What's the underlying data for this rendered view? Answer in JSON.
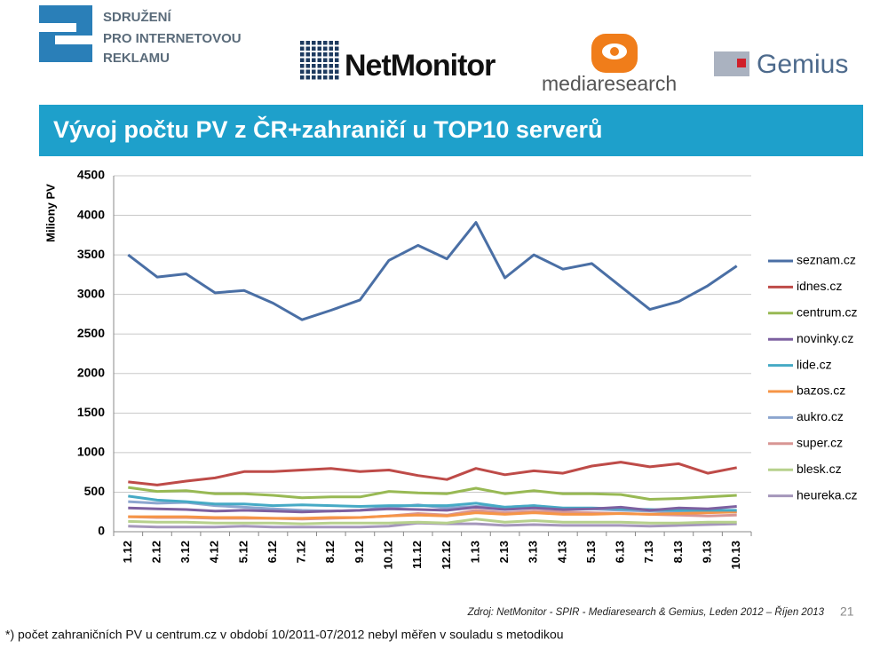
{
  "header": {
    "logo1": [
      "SDRUŽENÍ",
      "PRO INTERNETOVOU",
      "REKLAMU"
    ],
    "logo2": "NetMonitor",
    "logo3": "mediaresearch",
    "logo4": "Gemius",
    "title": "Vývoj počtu PV z ČR+zahraničí u TOP10 serverů"
  },
  "chart_data": {
    "type": "line",
    "y_label": "Miliony PV",
    "categories": [
      "1.12",
      "2.12",
      "3.12",
      "4.12",
      "5.12",
      "6.12",
      "7.12",
      "8.12",
      "9.12",
      "10.12",
      "11.12",
      "12.12",
      "1.13",
      "2.13",
      "3.13",
      "4.13",
      "5.13",
      "6.13",
      "7.13",
      "8.13",
      "9.13",
      "10.13"
    ],
    "ylim": [
      0,
      4500
    ],
    "yticks": [
      0,
      500,
      1000,
      1500,
      2000,
      2500,
      3000,
      3500,
      4000,
      4500
    ],
    "grid": true,
    "legend": "right",
    "series": [
      {
        "name": "seznam.cz",
        "color": "#4a6fa5",
        "values": [
          3500,
          3220,
          3260,
          3020,
          3050,
          2890,
          2680,
          2800,
          2930,
          3430,
          3620,
          3450,
          3910,
          3210,
          3500,
          3320,
          3390,
          3100,
          2810,
          2910,
          3110,
          3360
        ]
      },
      {
        "name": "idnes.cz",
        "color": "#be4b48",
        "values": [
          630,
          590,
          640,
          680,
          760,
          760,
          780,
          800,
          760,
          780,
          710,
          660,
          800,
          720,
          770,
          740,
          830,
          880,
          820,
          860,
          740,
          810
        ]
      },
      {
        "name": "centrum.cz",
        "color": "#98b954",
        "values": [
          560,
          510,
          520,
          480,
          480,
          460,
          430,
          440,
          440,
          510,
          490,
          480,
          550,
          480,
          520,
          480,
          480,
          470,
          410,
          420,
          440,
          460
        ]
      },
      {
        "name": "novinky.cz",
        "color": "#7d60a0",
        "values": [
          300,
          290,
          280,
          260,
          270,
          260,
          250,
          260,
          270,
          290,
          280,
          270,
          310,
          280,
          300,
          280,
          290,
          310,
          270,
          300,
          290,
          320
        ]
      },
      {
        "name": "lide.cz",
        "color": "#46aac5",
        "values": [
          450,
          400,
          380,
          350,
          350,
          330,
          340,
          330,
          320,
          330,
          330,
          330,
          360,
          310,
          330,
          300,
          300,
          290,
          280,
          270,
          270,
          270
        ]
      },
      {
        "name": "bazos.cz",
        "color": "#f69546",
        "values": [
          190,
          190,
          190,
          180,
          180,
          170,
          170,
          180,
          180,
          200,
          210,
          200,
          240,
          220,
          240,
          220,
          220,
          230,
          220,
          230,
          240,
          250
        ]
      },
      {
        "name": "aukro.cz",
        "color": "#8ca6cf",
        "values": [
          380,
          360,
          370,
          330,
          310,
          290,
          270,
          260,
          270,
          310,
          340,
          300,
          320,
          310,
          330,
          290,
          290,
          270,
          260,
          250,
          250,
          250
        ]
      },
      {
        "name": "super.cz",
        "color": "#d89694",
        "values": [
          190,
          180,
          180,
          170,
          170,
          170,
          160,
          170,
          180,
          200,
          230,
          210,
          270,
          240,
          260,
          250,
          240,
          230,
          220,
          210,
          200,
          210
        ]
      },
      {
        "name": "blesk.cz",
        "color": "#b7d18d",
        "values": [
          130,
          120,
          120,
          110,
          110,
          110,
          100,
          110,
          110,
          110,
          120,
          110,
          160,
          120,
          140,
          120,
          120,
          120,
          110,
          110,
          120,
          120
        ]
      },
      {
        "name": "heureka.cz",
        "color": "#a597bb",
        "values": [
          70,
          60,
          60,
          60,
          70,
          60,
          60,
          60,
          60,
          70,
          110,
          100,
          100,
          80,
          90,
          80,
          80,
          80,
          70,
          80,
          90,
          100
        ]
      }
    ]
  },
  "footer": {
    "source": "Zdroj: NetMonitor - SPIR - Mediaresearch & Gemius, Leden 2012 – Říjen 2013",
    "page": "21",
    "note": "*) počet zahraničních PV u centrum.cz v období 10/2011-07/2012 nebyl měřen v souladu s metodikou"
  }
}
